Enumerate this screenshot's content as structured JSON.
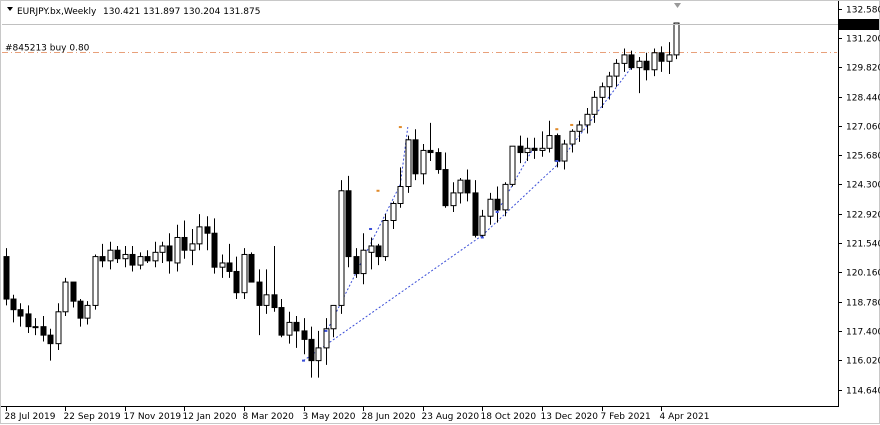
{
  "header": {
    "symbol_timeframe": "EURJPY.bx,Weekly",
    "ohlc": "130.421 131.897 130.204 131.875"
  },
  "order_line": {
    "label": "#845213 buy 0.80",
    "price": 130.55,
    "color": "#e8a07a"
  },
  "current_price": {
    "label": "131.875",
    "value": 131.875
  },
  "colors": {
    "bull_fill": "#ffffff",
    "bear_fill": "#000000",
    "candle_outline": "#000000",
    "history_line": "#3b4fd8",
    "buy_arrow": "#3b4fd8",
    "sell_marker": "#e08a2a",
    "price_tag_bg": "#000000",
    "price_tag_fg": "#ffffff"
  },
  "chart_data": {
    "type": "candlestick",
    "symbol": "EURJPY.bx",
    "timeframe": "Weekly",
    "ylim": [
      114.0,
      133.1
    ],
    "yticks": [
      114.64,
      116.02,
      117.4,
      118.78,
      120.16,
      121.54,
      122.92,
      124.3,
      125.68,
      127.06,
      128.44,
      129.82,
      131.2,
      132.58
    ],
    "ytick_labels": [
      "114.640",
      "116.020",
      "117.400",
      "118.780",
      "120.160",
      "121.540",
      "122.920",
      "124.300",
      "125.680",
      "127.060",
      "128.440",
      "129.820",
      "131.200",
      "132.580"
    ],
    "xtick_labels": [
      {
        "label": "28 Jul 2019",
        "index": 0
      },
      {
        "label": "22 Sep 2019",
        "index": 8
      },
      {
        "label": "17 Nov 2019",
        "index": 16
      },
      {
        "label": "12 Jan 2020",
        "index": 24
      },
      {
        "label": "8 Mar 2020",
        "index": 32
      },
      {
        "label": "3 May 2020",
        "index": 40
      },
      {
        "label": "28 Jun 2020",
        "index": 48
      },
      {
        "label": "23 Aug 2020",
        "index": 56
      },
      {
        "label": "18 Oct 2020",
        "index": 64
      },
      {
        "label": "13 Dec 2020",
        "index": 72
      },
      {
        "label": "7 Feb 2021",
        "index": 80
      },
      {
        "label": "4 Apr 2021",
        "index": 88
      }
    ],
    "candles": [
      [
        120.9,
        121.3,
        118.6,
        118.9
      ],
      [
        118.9,
        119.1,
        117.8,
        118.4
      ],
      [
        118.4,
        118.7,
        117.6,
        118.1
      ],
      [
        118.2,
        118.6,
        117.3,
        117.6
      ],
      [
        117.6,
        118.0,
        117.2,
        117.6
      ],
      [
        117.6,
        118.1,
        116.9,
        117.2
      ],
      [
        117.2,
        117.5,
        116.0,
        116.8
      ],
      [
        116.8,
        118.7,
        116.5,
        118.3
      ],
      [
        118.3,
        119.9,
        118.1,
        119.7
      ],
      [
        119.7,
        119.7,
        118.5,
        118.8
      ],
      [
        118.8,
        118.9,
        117.6,
        118.0
      ],
      [
        118.0,
        118.8,
        117.7,
        118.6
      ],
      [
        118.6,
        121.0,
        118.4,
        120.9
      ],
      [
        120.9,
        121.5,
        120.4,
        120.7
      ],
      [
        120.7,
        121.6,
        120.3,
        121.2
      ],
      [
        121.2,
        121.4,
        120.6,
        120.8
      ],
      [
        120.8,
        121.4,
        120.4,
        121.0
      ],
      [
        121.0,
        121.4,
        120.2,
        120.5
      ],
      [
        120.5,
        121.1,
        120.3,
        120.9
      ],
      [
        120.9,
        121.2,
        120.6,
        120.7
      ],
      [
        120.7,
        121.6,
        120.4,
        121.1
      ],
      [
        121.1,
        121.6,
        120.6,
        121.4
      ],
      [
        121.4,
        122.0,
        120.1,
        120.7
      ],
      [
        120.6,
        122.4,
        120.2,
        121.8
      ],
      [
        121.8,
        122.6,
        120.8,
        121.2
      ],
      [
        121.2,
        122.2,
        120.5,
        121.5
      ],
      [
        121.5,
        122.9,
        121.2,
        122.3
      ],
      [
        122.3,
        122.8,
        121.2,
        122.0
      ],
      [
        122.0,
        122.7,
        120.1,
        120.4
      ],
      [
        120.4,
        121.0,
        119.9,
        120.6
      ],
      [
        120.6,
        121.5,
        119.9,
        120.2
      ],
      [
        120.2,
        120.9,
        118.9,
        119.2
      ],
      [
        119.2,
        121.3,
        118.9,
        121.0
      ],
      [
        121.0,
        121.1,
        119.7,
        119.7
      ],
      [
        119.7,
        120.3,
        117.2,
        118.6
      ],
      [
        118.6,
        120.3,
        118.2,
        119.1
      ],
      [
        119.1,
        121.4,
        118.3,
        118.5
      ],
      [
        118.5,
        118.9,
        117.1,
        117.2
      ],
      [
        117.2,
        118.3,
        116.8,
        117.8
      ],
      [
        117.8,
        118.1,
        116.6,
        117.4
      ],
      [
        117.4,
        118.0,
        116.3,
        117.0
      ],
      [
        117.0,
        117.6,
        115.2,
        116.0
      ],
      [
        116.0,
        117.4,
        115.2,
        116.6
      ],
      [
        116.6,
        118.0,
        115.8,
        117.5
      ],
      [
        117.5,
        118.6,
        117.1,
        118.6
      ],
      [
        118.6,
        124.5,
        118.2,
        124.0
      ],
      [
        124.0,
        124.7,
        120.4,
        120.9
      ],
      [
        120.9,
        121.3,
        119.9,
        120.1
      ],
      [
        120.1,
        122.0,
        119.6,
        121.2
      ],
      [
        121.1,
        121.8,
        120.3,
        121.4
      ],
      [
        121.4,
        121.5,
        120.5,
        120.9
      ],
      [
        120.9,
        122.9,
        120.7,
        122.6
      ],
      [
        122.6,
        123.5,
        122.2,
        123.4
      ],
      [
        123.4,
        125.1,
        123.2,
        124.2
      ],
      [
        124.2,
        126.6,
        123.9,
        126.4
      ],
      [
        126.4,
        126.9,
        124.5,
        124.8
      ],
      [
        124.8,
        126.2,
        124.3,
        125.9
      ],
      [
        125.9,
        127.2,
        125.4,
        125.8
      ],
      [
        125.8,
        126.0,
        124.8,
        125.0
      ],
      [
        125.0,
        125.8,
        123.2,
        123.3
      ],
      [
        123.3,
        124.4,
        123.0,
        123.9
      ],
      [
        123.9,
        124.6,
        123.4,
        124.5
      ],
      [
        124.5,
        125.0,
        123.5,
        123.9
      ],
      [
        123.9,
        124.5,
        121.8,
        121.9
      ],
      [
        121.9,
        123.1,
        121.8,
        122.8
      ],
      [
        122.8,
        123.9,
        122.4,
        123.6
      ],
      [
        123.6,
        124.2,
        122.5,
        123.1
      ],
      [
        123.1,
        124.4,
        122.8,
        124.3
      ],
      [
        124.3,
        126.1,
        124.2,
        126.1
      ],
      [
        126.1,
        126.6,
        125.3,
        125.8
      ],
      [
        125.8,
        126.5,
        125.4,
        126.0
      ],
      [
        126.0,
        126.5,
        125.5,
        125.9
      ],
      [
        125.9,
        126.8,
        125.6,
        126.0
      ],
      [
        126.0,
        127.3,
        125.8,
        126.6
      ],
      [
        126.6,
        126.7,
        125.1,
        125.4
      ],
      [
        125.4,
        126.4,
        125.0,
        126.2
      ],
      [
        126.2,
        126.9,
        125.8,
        126.8
      ],
      [
        126.8,
        127.3,
        126.3,
        127.1
      ],
      [
        127.1,
        127.9,
        126.7,
        127.6
      ],
      [
        127.6,
        128.7,
        127.2,
        128.4
      ],
      [
        128.4,
        129.1,
        127.9,
        128.9
      ],
      [
        128.9,
        129.6,
        128.3,
        129.4
      ],
      [
        129.4,
        130.2,
        128.9,
        130.0
      ],
      [
        130.0,
        130.7,
        129.6,
        130.4
      ],
      [
        130.4,
        130.6,
        129.7,
        129.8
      ],
      [
        129.8,
        130.3,
        128.6,
        130.1
      ],
      [
        130.1,
        130.5,
        129.2,
        129.7
      ],
      [
        129.7,
        130.7,
        129.4,
        130.5
      ],
      [
        130.5,
        130.8,
        129.6,
        130.1
      ],
      [
        130.1,
        131.0,
        129.5,
        130.4
      ],
      [
        130.4,
        131.9,
        130.2,
        131.9
      ]
    ]
  }
}
